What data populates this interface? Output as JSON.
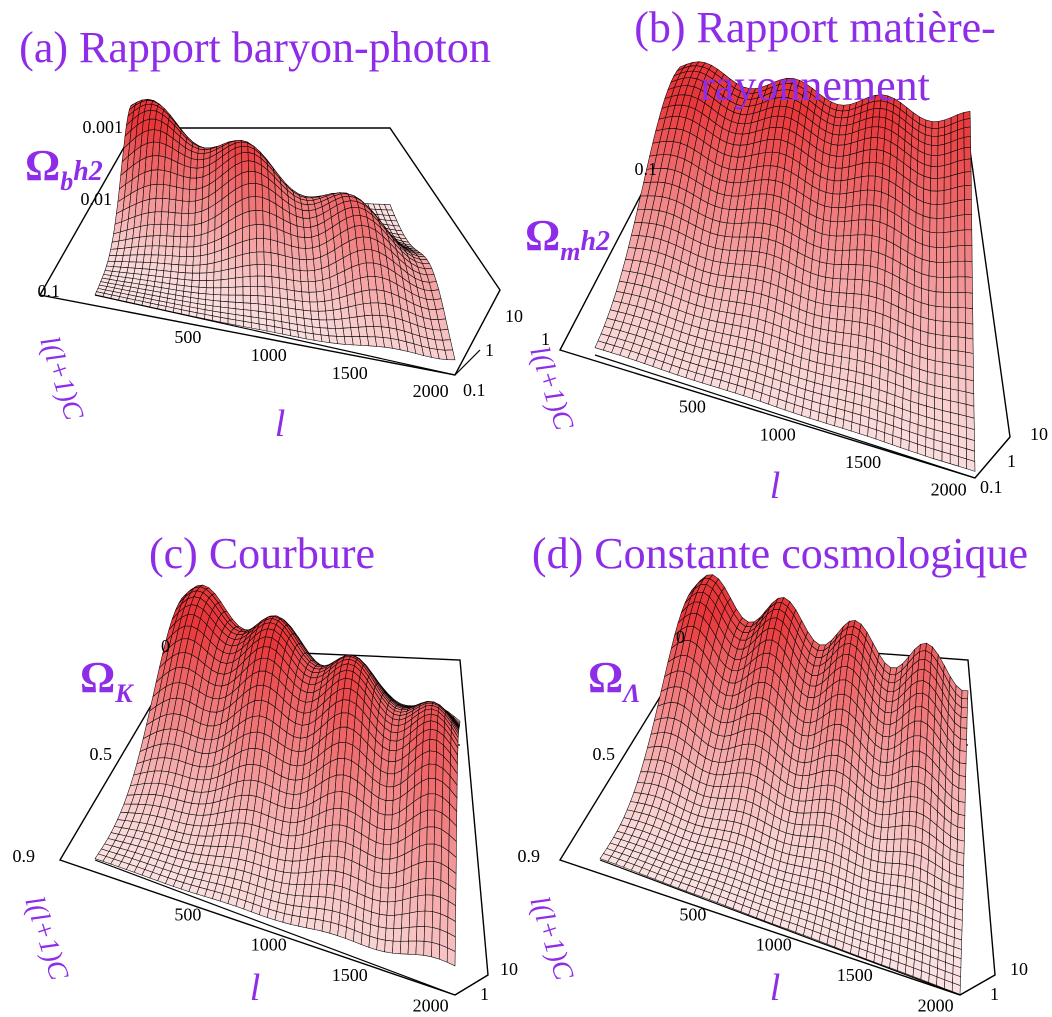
{
  "colors": {
    "title": "#8f2ce8",
    "surface_peak": "#e8373a",
    "surface_low": "#fbe2e2",
    "mesh": "#000000",
    "box": "#000000"
  },
  "chart_data": [
    {
      "type": "surface",
      "title_lines": [
        "(a) Rapport baryon-photon"
      ],
      "zlabel": {
        "main": "Ω",
        "sub": "b",
        "sup": "h2"
      },
      "cl_label": "l(l+1)C",
      "xlabel": "l",
      "x_ticks": [
        "500",
        "1000",
        "1500",
        "2000"
      ],
      "param_ticks": [
        "0.001",
        "0.01",
        "0.1"
      ],
      "y_ticks": [
        "10",
        "1",
        "0.1"
      ]
    },
    {
      "type": "surface",
      "title_lines": [
        "(b) Rapport matière-",
        "rayonnement"
      ],
      "zlabel": {
        "main": "Ω",
        "sub": "m",
        "sup": "h2"
      },
      "cl_label": "l(l+1)C",
      "xlabel": "l",
      "x_ticks": [
        "500",
        "1000",
        "1500",
        "2000"
      ],
      "param_ticks": [
        "0.1",
        "1"
      ],
      "y_ticks": [
        "10",
        "1",
        "0.1"
      ]
    },
    {
      "type": "surface",
      "title_lines": [
        "(c) Courbure"
      ],
      "zlabel": {
        "main": "Ω",
        "sub": "K",
        "sup": ""
      },
      "cl_label": "l(l+1)C",
      "xlabel": "l",
      "x_ticks": [
        "500",
        "1000",
        "1500",
        "2000"
      ],
      "param_ticks": [
        "0",
        "0.5",
        "0.9"
      ],
      "y_ticks": [
        "10",
        "1"
      ]
    },
    {
      "type": "surface",
      "title_lines": [
        "(d) Constante cosmologique"
      ],
      "zlabel": {
        "main": "Ω",
        "sub": "Λ",
        "sup": ""
      },
      "cl_label": "l(l+1)C",
      "xlabel": "l",
      "x_ticks": [
        "500",
        "1000",
        "1500",
        "2000"
      ],
      "param_ticks": [
        "0",
        "0.5",
        "0.9"
      ],
      "y_ticks": [
        "10",
        "1"
      ]
    }
  ]
}
